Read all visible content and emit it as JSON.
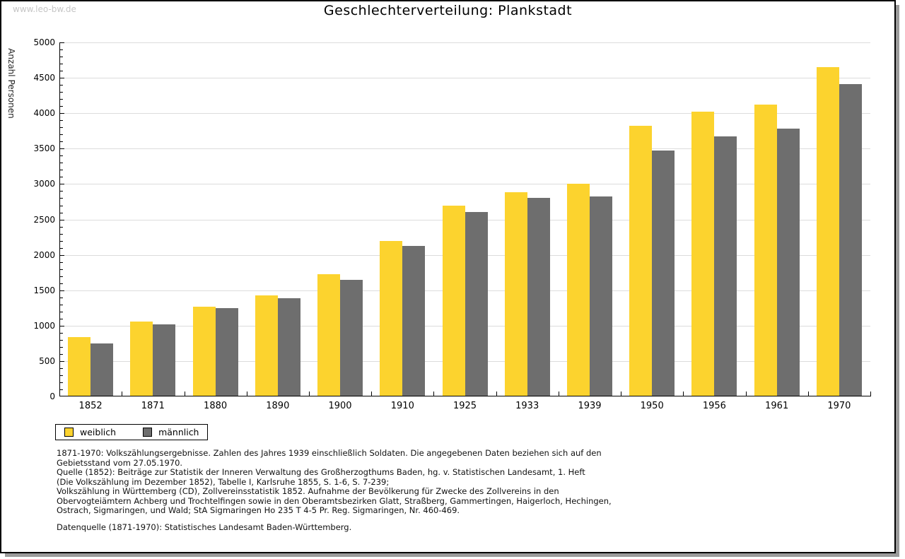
{
  "page": {
    "watermark": "www.leo-bw.de"
  },
  "chart_data": {
    "type": "bar",
    "title": "Geschlechterverteilung: Plankstadt",
    "xlabel": "",
    "ylabel": "Anzahl Personen",
    "ylim": [
      0,
      5000
    ],
    "ytick_major": 500,
    "ytick_minor": 100,
    "grid": true,
    "legend_position": "bottom-left",
    "categories": [
      "1852",
      "1871",
      "1880",
      "1890",
      "1900",
      "1910",
      "1925",
      "1933",
      "1939",
      "1950",
      "1956",
      "1961",
      "1970"
    ],
    "series": [
      {
        "name": "weiblich",
        "color": "#FCD32E",
        "values": [
          840,
          1060,
          1265,
          1430,
          1730,
          2200,
          2700,
          2880,
          3000,
          3825,
          4025,
          4120,
          4650
        ]
      },
      {
        "name": "männlich",
        "color": "#6E6E6E",
        "values": [
          745,
          1020,
          1250,
          1390,
          1645,
          2125,
          2610,
          2800,
          2820,
          3475,
          3675,
          3785,
          4415
        ]
      }
    ],
    "axis_color": "#000000",
    "gridline_color": "#dcdcdc"
  },
  "footnotes": {
    "lines": [
      "1871-1970: Volkszählungsergebnisse. Zahlen des Jahres 1939 einschließlich Soldaten. Die angegebenen Daten beziehen sich auf den",
      "Gebietsstand vom 27.05.1970.",
      "Quelle (1852): Beiträge zur Statistik der Inneren Verwaltung des Großherzogthums Baden, hg. v. Statistischen Landesamt, 1. Heft",
      "(Die Volkszählung im Dezember 1852), Tabelle I, Karlsruhe 1855, S. 1-6, S. 7-239;",
      "Volkszählung in Württemberg (CD), Zollvereinsstatistik 1852. Aufnahme der Bevölkerung für Zwecke des Zollvereins in den",
      "Obervogteiämtern Achberg und Trochtelfingen sowie in den Oberamtsbezirken Glatt, Straßberg, Gammertingen, Haigerloch, Hechingen,",
      "Ostrach, Sigmaringen, und Wald; StA Sigmaringen Ho 235 T 4-5 Pr. Reg. Sigmaringen, Nr. 460-469."
    ],
    "datasource": "Datenquelle (1871-1970): Statistisches Landesamt Baden-Württemberg."
  }
}
